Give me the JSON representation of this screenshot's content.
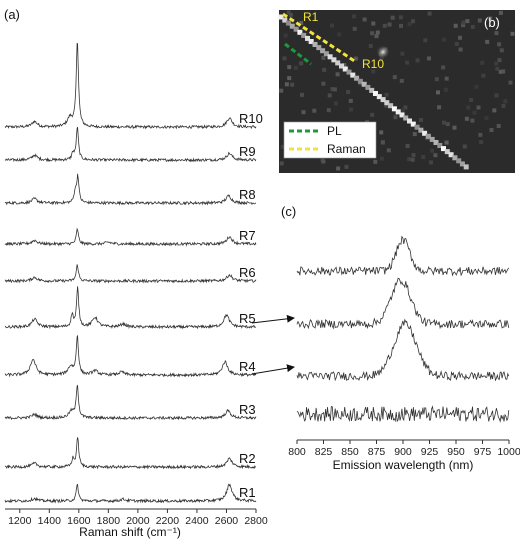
{
  "chart_data": [
    {
      "panel": "(a)",
      "type": "line",
      "xlabel": "Raman shift (cm⁻¹)",
      "xlim": [
        1100,
        2800
      ],
      "xticks": [
        1200,
        1400,
        1600,
        1800,
        2000,
        2200,
        2400,
        2600,
        2800
      ],
      "series": [
        {
          "name": "R10",
          "peaks": [
            {
              "x": 1300,
              "h": 0.18
            },
            {
              "x": 1540,
              "h": 0.3
            },
            {
              "x": 1590,
              "h": 2.9
            },
            {
              "x": 2620,
              "h": 0.3
            }
          ]
        },
        {
          "name": "R9",
          "peaks": [
            {
              "x": 1300,
              "h": 0.16
            },
            {
              "x": 1560,
              "h": 0.22
            },
            {
              "x": 1590,
              "h": 1.1
            },
            {
              "x": 2620,
              "h": 0.22
            }
          ]
        },
        {
          "name": "R8",
          "peaks": [
            {
              "x": 1300,
              "h": 0.14
            },
            {
              "x": 1575,
              "h": 0.34
            },
            {
              "x": 1593,
              "h": 0.9
            },
            {
              "x": 2615,
              "h": 0.24
            }
          ]
        },
        {
          "name": "R7",
          "peaks": [
            {
              "x": 1300,
              "h": 0.12
            },
            {
              "x": 1590,
              "h": 0.5
            },
            {
              "x": 1800,
              "h": 0.06
            },
            {
              "x": 2620,
              "h": 0.24
            }
          ]
        },
        {
          "name": "R6",
          "peaks": [
            {
              "x": 1300,
              "h": 0.12
            },
            {
              "x": 1590,
              "h": 0.55
            },
            {
              "x": 2620,
              "h": 0.2
            }
          ]
        },
        {
          "name": "R5",
          "peaks": [
            {
              "x": 1300,
              "h": 0.26
            },
            {
              "x": 1555,
              "h": 0.4
            },
            {
              "x": 1592,
              "h": 1.3
            },
            {
              "x": 1710,
              "h": 0.32
            },
            {
              "x": 1900,
              "h": 0.1
            },
            {
              "x": 2600,
              "h": 0.4
            }
          ]
        },
        {
          "name": "R4",
          "peaks": [
            {
              "x": 1290,
              "h": 0.52
            },
            {
              "x": 1545,
              "h": 0.28
            },
            {
              "x": 1590,
              "h": 1.3
            },
            {
              "x": 1710,
              "h": 0.14
            },
            {
              "x": 1890,
              "h": 0.1
            },
            {
              "x": 2590,
              "h": 0.44
            }
          ]
        },
        {
          "name": "R3",
          "peaks": [
            {
              "x": 1300,
              "h": 0.12
            },
            {
              "x": 1550,
              "h": 0.22
            },
            {
              "x": 1590,
              "h": 1.1
            },
            {
              "x": 2610,
              "h": 0.24
            }
          ]
        },
        {
          "name": "R2",
          "peaks": [
            {
              "x": 1300,
              "h": 0.12
            },
            {
              "x": 1560,
              "h": 0.26
            },
            {
              "x": 1592,
              "h": 1.0
            },
            {
              "x": 2620,
              "h": 0.28
            }
          ]
        },
        {
          "name": "R1",
          "peaks": [
            {
              "x": 1300,
              "h": 0.08
            },
            {
              "x": 1590,
              "h": 0.55
            },
            {
              "x": 1900,
              "h": 0.06
            },
            {
              "x": 2620,
              "h": 0.55
            }
          ]
        }
      ]
    },
    {
      "panel": "(b)",
      "type": "image",
      "labels": {
        "start": "R1",
        "end": "R10"
      },
      "legend": [
        {
          "label": "PL",
          "color": "#1e9a3e"
        },
        {
          "label": "Raman",
          "color": "#f2e43a"
        }
      ]
    },
    {
      "panel": "(c)",
      "type": "line",
      "xlabel": "Emission wavelength (nm)",
      "xlim": [
        800,
        1000
      ],
      "xticks": [
        800,
        825,
        850,
        875,
        900,
        925,
        950,
        975,
        1000
      ],
      "series": [
        {
          "peak_center": 900,
          "peak_width": 9,
          "peak_height": 1.55
        },
        {
          "peak_center": 898,
          "peak_width": 13,
          "peak_height": 2.2
        },
        {
          "peak_center": 902,
          "peak_width": 15,
          "peak_height": 2.6
        },
        {
          "peak_center": null
        }
      ],
      "arrows": [
        {
          "from": "R5",
          "to_trace": 2
        },
        {
          "from": "R4",
          "to_trace": 3
        }
      ]
    }
  ]
}
